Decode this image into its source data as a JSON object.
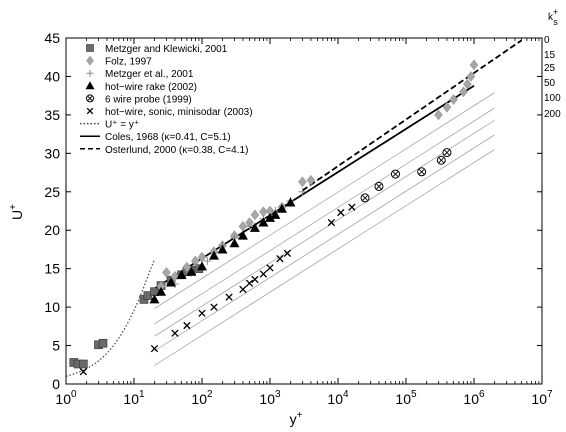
{
  "chart_data": {
    "type": "scatter",
    "title": "",
    "xlabel": "y",
    "xlabel_sup": "+",
    "ylabel": "U",
    "ylabel_sup": "+",
    "xscale": "log",
    "xlim": [
      1,
      10000000
    ],
    "ylim": [
      0,
      45
    ],
    "x_ticks": [
      {
        "base": "10",
        "exp": "0"
      },
      {
        "base": "10",
        "exp": "1"
      },
      {
        "base": "10",
        "exp": "2"
      },
      {
        "base": "10",
        "exp": "3"
      },
      {
        "base": "10",
        "exp": "4"
      },
      {
        "base": "10",
        "exp": "5"
      },
      {
        "base": "10",
        "exp": "6"
      },
      {
        "base": "10",
        "exp": "7"
      }
    ],
    "y_ticks": [
      "0",
      "5",
      "10",
      "15",
      "20",
      "25",
      "30",
      "35",
      "40",
      "45"
    ],
    "grid": false,
    "legend_position": "top-left",
    "roughness_label": "k",
    "roughness_label_sub": "s",
    "roughness_label_sup": "+",
    "roughness_values": [
      "0",
      "15",
      "25",
      "50",
      "100",
      "200"
    ],
    "roughness_lines": [
      {
        "ks": 0,
        "label": "0",
        "offset": 0.0
      },
      {
        "ks": 15,
        "label": "15",
        "offset": 2.6
      },
      {
        "ks": 25,
        "label": "25",
        "offset": 4.6
      },
      {
        "ks": 50,
        "label": "50",
        "offset": 6.2
      },
      {
        "ks": 100,
        "label": "100",
        "offset": 8.1
      },
      {
        "ks": 200,
        "label": "200",
        "offset": 10.0
      }
    ],
    "series": [
      {
        "name": "Metzger and Klewicki, 2001",
        "marker": "square",
        "color": "#6a6a6a",
        "x": [
          1.3,
          1.5,
          1.8,
          3.0,
          3.5,
          14,
          16,
          20,
          25,
          35,
          50,
          60,
          70,
          90
        ],
        "y": [
          2.8,
          2.6,
          2.6,
          5.1,
          5.3,
          11.0,
          11.5,
          12.0,
          12.8,
          13.5,
          14.2,
          14.6,
          14.8,
          15.0
        ]
      },
      {
        "name": "Folz, 1997",
        "marker": "diamond",
        "color": "#a6a6a6",
        "x": [
          25,
          30,
          40,
          60,
          80,
          100,
          150,
          200,
          300,
          400,
          500,
          600,
          800,
          1000,
          1500,
          3000,
          4000,
          300000,
          400000,
          500000,
          700000,
          800000,
          900000,
          1000000
        ],
        "y": [
          12.7,
          14.5,
          14.0,
          15.2,
          16.0,
          16.5,
          17.2,
          18.0,
          19.3,
          20.5,
          21.0,
          22.0,
          22.4,
          22.5,
          23.0,
          26.3,
          26.5,
          35.0,
          36.0,
          37.0,
          38.0,
          39.0,
          40.0,
          41.5
        ]
      },
      {
        "name": "Metzger et al., 2001",
        "marker": "plus",
        "color": "#8a8a8a",
        "x": [
          40,
          70,
          120,
          200,
          300,
          500,
          800,
          1200,
          2000,
          3000
        ],
        "y": [
          13.0,
          14.5,
          16.0,
          18.0,
          19.0,
          20.5,
          21.5,
          22.5,
          23.8,
          25.0
        ]
      },
      {
        "name": "hot−wire rake (2002)",
        "marker": "triangle",
        "color": "#000000",
        "x": [
          20,
          25,
          35,
          50,
          70,
          100,
          150,
          200,
          300,
          400,
          600,
          800,
          1000,
          1200,
          1500,
          2000
        ],
        "y": [
          11.0,
          12.0,
          13.2,
          14.2,
          14.6,
          15.3,
          16.7,
          17.5,
          18.3,
          19.3,
          20.3,
          21.0,
          21.6,
          22.0,
          22.8,
          23.6
        ]
      },
      {
        "name": "6 wire probe (1999)",
        "marker": "circle",
        "color": "#6a6a6a",
        "x": [
          25000,
          40000,
          70000,
          170000,
          330000,
          400000
        ],
        "y": [
          24.2,
          25.7,
          27.3,
          27.6,
          29.1,
          30.1
        ]
      },
      {
        "name": "hot−wire, sonic, minisodar (2003)",
        "marker": "cross",
        "color": "#000000",
        "x": [
          1.8,
          20,
          40,
          60,
          100,
          150,
          250,
          400,
          500,
          600,
          800,
          1000,
          1400,
          1800,
          8000,
          11000,
          16000
        ],
        "y": [
          1.6,
          4.6,
          6.6,
          7.6,
          9.2,
          10.0,
          11.3,
          12.3,
          13.1,
          13.6,
          14.3,
          15.1,
          16.3,
          17.0,
          21.0,
          22.3,
          23.0
        ]
      }
    ],
    "lines": [
      {
        "name": "U⁺ = y⁺",
        "style": "dotted",
        "color": "#444444"
      },
      {
        "name": "Coles, 1968 (κ=0.41, C=5.1)",
        "style": "solid",
        "color": "#000000",
        "kappa": 0.41,
        "C": 5.1,
        "x_range": [
          20,
          1000000
        ]
      },
      {
        "name": "Osterlund, 2000 (κ=0.38, C=4.1)",
        "style": "dashed",
        "color": "#000000",
        "kappa": 0.38,
        "C": 4.1,
        "x_range": [
          3000,
          5000000
        ]
      }
    ]
  }
}
